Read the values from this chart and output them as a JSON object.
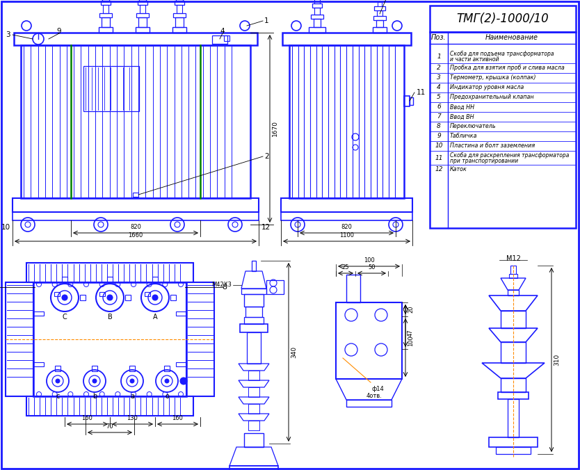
{
  "title": "ТМГ(2)-1000/10",
  "bg_color": "#ffffff",
  "blue": "#1a1aff",
  "green": "#008000",
  "orange": "#ff8c00",
  "black": "#000000",
  "table_header": "Поз.",
  "table_header2": "Наименование",
  "items": [
    [
      "1",
      "Скоба для подъема трансформатора\nи части активной"
    ],
    [
      "2",
      "Пробка для взятия проб и слива масла"
    ],
    [
      "3",
      "Термометр, крышка (колпак)"
    ],
    [
      "4",
      "Индикатор уровня масла"
    ],
    [
      "5",
      "Предохранительный клапан"
    ],
    [
      "6",
      "Ввод НН"
    ],
    [
      "7",
      "Ввод ВН"
    ],
    [
      "8",
      "Переключатель"
    ],
    [
      "9",
      "Табличка"
    ],
    [
      "10",
      "Пластина и болт заземления"
    ],
    [
      "11",
      "Скоба для раскрепления трансформатора\nпри транспортировании"
    ],
    [
      "12",
      "Каток"
    ]
  ]
}
